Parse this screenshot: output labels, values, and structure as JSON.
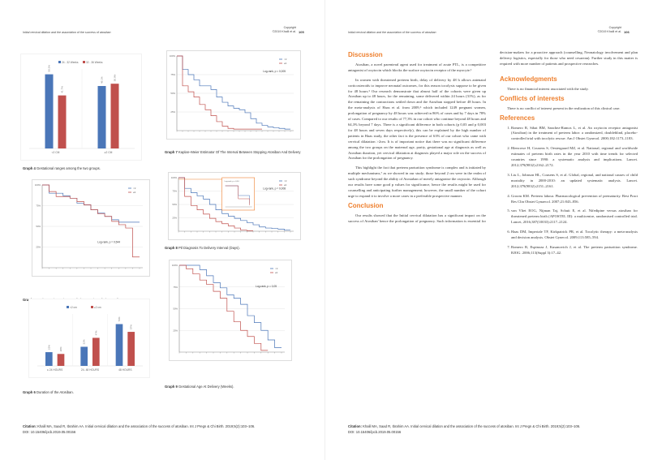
{
  "running_title": "Initial cervical dilation and the association of the success of atosiban",
  "copyright_line1": "Copyright",
  "copyright_line2": "©2019 Khalil et al.",
  "left_page_number": "105",
  "right_page_number": "106",
  "citation_label": "Citation:",
  "citation_text": "Khalil MA, Saad R, Ibrahim AA. Initial cervical dilation and the association of the success of atosiban. Int J Pregn & Chi Birth. 2019;5(2):103‒106.",
  "citation_doi": "DOI: 10.15406/ipcb.2019.05.00156",
  "captions": {
    "g4": {
      "label": "Graph 4",
      "text": " Gestational ranges among the two groups."
    },
    "g5": {
      "label": "Graph 5",
      "text": " Kaplan–Meier Estimator Of The Duration Of The Atosiban."
    },
    "g6": {
      "label": "Graph 6",
      "text": " Duration of the Atosiban."
    },
    "g7": {
      "label": "Graph 7",
      "text": " Kaplan–Meier Estimator Of The Interval Between Stopping Atosiban And Delivery"
    },
    "g8": {
      "label": "Graph 8",
      "text": " Ptl Diagnosis To Delivery Interval (Days)."
    },
    "g9": {
      "label": "Graph 9",
      "text": " Gestational Age At Delivery (Weeks)."
    }
  },
  "colors": {
    "blue": "#4a76b8",
    "red": "#c0504d",
    "orange": "#ee7f2d"
  },
  "chart_data": [
    {
      "id": "g4",
      "type": "bar",
      "categories": [
        "<2 CM",
        "≥2 CM"
      ],
      "series": [
        {
          "name": "24 - 32 Weeks",
          "values": [
            58.3,
            49.1
          ],
          "labels": [
            "58.3%",
            "49.1%"
          ]
        },
        {
          "name": "32 - 36 Weeks",
          "values": [
            41.7,
            50.9
          ],
          "labels": [
            "41.7%",
            "50.9%"
          ]
        }
      ],
      "ylim": [
        0,
        100
      ],
      "legend": "top"
    },
    {
      "id": "g6",
      "type": "bar",
      "categories": [
        "≤ 24 HOURS",
        "24- 48 HOURS",
        "48 HOURS"
      ],
      "series": [
        {
          "name": "<2 cm",
          "values": [
            23,
            32,
            70
          ],
          "labels": [
            "23%",
            "32%",
            "70%"
          ]
        },
        {
          "name": "≥2 cm",
          "values": [
            20,
            47,
            57
          ],
          "labels": [
            "20%",
            "47%",
            "57%"
          ]
        }
      ],
      "ylim": [
        0,
        100
      ],
      "legend": "top"
    },
    {
      "id": "g5",
      "type": "line",
      "step": true,
      "yticks": [
        "100%",
        "75%",
        "50%",
        "25%"
      ],
      "annotation": "Log-rank, p = 0,544",
      "series": [
        {
          "name": "<2",
          "values": [
            1,
            0.9,
            0.9,
            0.87,
            0.84,
            0.78,
            0.76,
            0.7,
            0.66,
            0.62,
            0.58,
            0.55,
            0.55,
            0.55
          ]
        },
        {
          "name": "≥2",
          "values": [
            1,
            0.92,
            0.86,
            0.86,
            0.84,
            0.8,
            0.76,
            0.7,
            0.65,
            0.62,
            0.56,
            0.52,
            0.48,
            0.13
          ]
        }
      ],
      "ylim": [
        0,
        1
      ],
      "legend": "top-right"
    },
    {
      "id": "g7",
      "type": "line",
      "step": true,
      "yticks": [
        "100%",
        "75%",
        "50%",
        "25%"
      ],
      "annotation": "Log-rank, p = 0,005",
      "series": [
        {
          "name": "<2",
          "values": [
            1,
            0.82,
            0.75,
            0.68,
            0.6,
            0.6,
            0.55,
            0.45,
            0.38,
            0.33,
            0.3,
            0.28,
            0.24,
            0.16,
            0.1,
            0.07,
            0.05,
            0.04,
            0.03,
            0.02
          ]
        },
        {
          "name": "≥2",
          "values": [
            1,
            0.6,
            0.52,
            0.45,
            0.35,
            0.28,
            0.2,
            0.12,
            0.06,
            0.03,
            0.02,
            0.02,
            0.02,
            0.02,
            0.02
          ]
        }
      ],
      "ylim": [
        0,
        1
      ],
      "legend": "top-right"
    },
    {
      "id": "g8",
      "type": "line",
      "step": true,
      "yticks": [
        "100%",
        "75%",
        "50%",
        "25%"
      ],
      "annotation": "Log-rank, p = 0,008",
      "inset_annotation": "Log-rank, p = 0,54",
      "series": [
        {
          "name": "<2",
          "values": [
            1,
            0.8,
            0.72,
            0.66,
            0.6,
            0.5,
            0.4,
            0.33,
            0.28,
            0.24,
            0.2,
            0.16,
            0.12,
            0.08,
            0.06,
            0.05,
            0.04,
            0.02
          ]
        },
        {
          "name": "≥2",
          "values": [
            1,
            0.65,
            0.48,
            0.4,
            0.32,
            0.24,
            0.18,
            0.14,
            0.1,
            0.06,
            0.02,
            0.01
          ]
        }
      ],
      "ylim": [
        0,
        1
      ],
      "legend": "top-right"
    },
    {
      "id": "g9",
      "type": "line",
      "step": true,
      "yticks": [
        "100%",
        "75%",
        "50%",
        "25%"
      ],
      "annotation": "Log-rank, p = 0,05",
      "series": [
        {
          "name": "<2",
          "values": [
            1,
            1,
            1,
            0.95,
            0.88,
            0.8,
            0.74,
            0.66,
            0.62,
            0.55,
            0.42,
            0.34,
            0.25,
            0.14,
            0.05
          ]
        },
        {
          "name": "≥2",
          "values": [
            1,
            0.96,
            0.9,
            0.83,
            0.78,
            0.7,
            0.62,
            0.47,
            0.35,
            0.25,
            0.18,
            0.1,
            0.02
          ]
        }
      ],
      "ylim": [
        0,
        1
      ],
      "legend": "top-right"
    }
  ],
  "article": {
    "discussion_heading": "Discussion",
    "discussion": [
      "Atosiban, a novel parenteral agent used for treatment of acute PTL, is a competitive antagonist of oxytocin which blocks the surface oxytocin receptor of the myocyte.¹",
      "In women with threatened preterm birth, delay of delivery by 48 h allows antenatal corticosteroids to improve neonatal outcomes, for this reason tocolysis suppose to be given for 48 hours.³ Our research demonstrate that almost half of the cohorts were given up Atosiban up to 48 hours, for the remaining, some delivered within 24 hours (31%), as for the remaining the contractions settled down and the Atosiban stopped before 48 hours. In the meta-analysis of Haas et al. from 2009,⁶ which included 1249 pregnant women, prolongation of pregnancy by 48 hours was achieved in 86% of cases and by 7 days in 78% of cases. Compared to our results of 77,3% in our cohort who continue beyond 48 hours and 64,3% beyond 7 days. There is a significant difference in both cohorts (p 0,03 and p 0,003 for 48 hours and seven days respectively), this can be explained by the high number of patients in Haas study, the other fact is the presence of 63% of our cohort who came with cervical dilatation >2cm. It is of important notice that there was no significant difference among the two groups on the maternal age, parity, gestational age at diagnosis as well as Atosiban duration, yet cervical dilatation at diagnosis played a major role on the success of Atosiban for the prolongation of pregnancy.",
      "This highlight the fact that preterm parturition syndrome is complex and is initiated by multiple mechanisms,⁷ as we showed in our study; those beyond 2 cm were in the realm of such syndrome beyond the ability of Atosiaban of merely antagonise the oxytocin. Although our results have some good p values for significance, hence the results might be used for counselling and anticipating further management; however, the small number of the cohort urge to expand it to involve a more cases in a preferable prospective manner."
    ],
    "conclusion_heading": "Conclusion",
    "conclusion": "Our results showed that the Initial cervical dilatation has a significant impact on the success of Atosiban' hence the prolongation of pregnancy. Such information is essential for decision-makers for a proactive approach (counselling, Neonatology involvement and plan delivery logistics, especially for those who need cesarean). Further study in this matter is required with more number of patients and prospective researches.",
    "ack_heading": "Acknowledgments",
    "ack": "There is no financial interest associated with the study.",
    "coi_heading": "Conflicts of interests",
    "coi": "There is no conflict of interest present in the realization of this clinical case.",
    "ref_heading": "References",
    "references": [
      "Romero R, Sibai BM, Sanchez-Ramos L, et al. An oxytocin receptor antagonist (Atosiban) in the treatment of preterm labor: a randomized, doubleblind, placebo-controlled trial with tocolytic rescue. Am J Obstet Gynecol. 2000;182:1173–1183.",
      "Blencowe H, Cousens S, Oestergaard MZ, et al. National, regional and worldwide estimates of preterm birth rates in the year 2010 with time trends for selected countries since 1990: a systematic analysis and implications. Lancet. 2012;379(9832):2162–2172.",
      "Liu L, Johnson HL, Cousens S, et al. Global, regional, and national causes of child mortality in 2000-2010: an updated systematic analysis. Lancet. 2012;379(9832):2151–2161.",
      "Groom KM. Preterm labour. Pharmacological prevention of prematurity. Best Pract Res Clin Obstet Gynaecol. 2007;21:843–856.",
      "van Vliet EOG, Nijman Taj, Schuit E, et al. Nifedipine versus atosiban for threatened preterm birth (APOSTEL III): a multicentre, randomised controlled trial. Lancet, 2016;387(10033):2117–2124.",
      "Haas DM, Imperiale TF, Kirkpatrick PR, et al. Tocolytic therapy: a meta-analysis and decision analysis. Obstet Gynecol. 2009;113:585–594.",
      "Romero R, Espinoza J, Kusanovich J, et al. The preterm parturition syndrome. BJOG. 2006;113(Suppl 3):17–42."
    ]
  }
}
